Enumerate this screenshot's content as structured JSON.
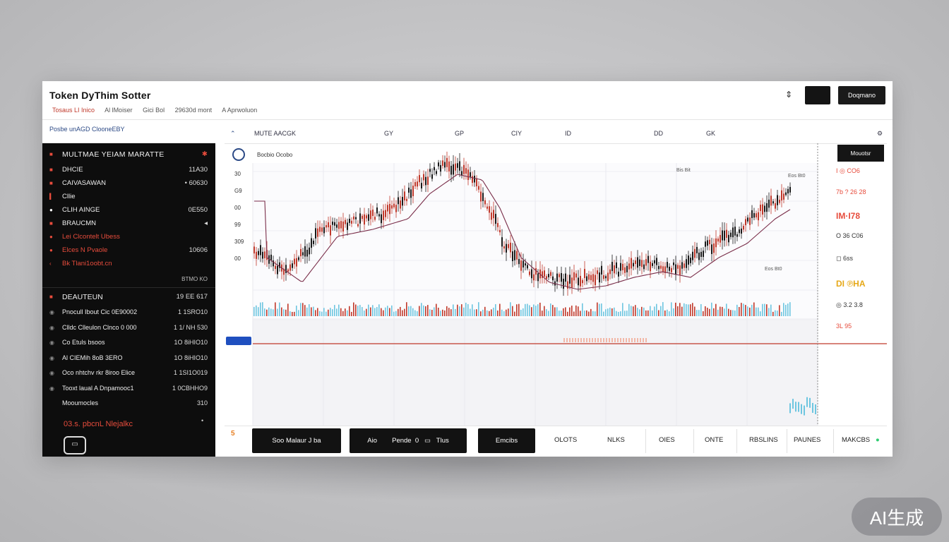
{
  "header": {
    "title": "Token DyThim Sotter",
    "meta": [
      "Tosaus LI Inico",
      "Al lMoiser",
      "Gici Bol",
      "29630d mont",
      "A Aprwoluon"
    ],
    "icon": "sort-icon",
    "button": "Doqmano"
  },
  "sidebar": {
    "top_link": "Posbe unAGD ClooneEBY",
    "section1_title": "MULTMAE YEIAM MARATTE",
    "items1": [
      {
        "label": "DHCIE",
        "value": "11A30",
        "icon": "square-icon",
        "color": "#e74c3c"
      },
      {
        "label": "CAIVASAWAN",
        "value": "• 60630",
        "icon": "square-icon",
        "color": "#e74c3c"
      },
      {
        "label": "Cllie",
        "value": "",
        "icon": "bar-icon",
        "color": "#e74c3c"
      },
      {
        "label": "CLIH AINGE",
        "value": "0E550",
        "icon": "dot-icon",
        "color": "#ffffff"
      },
      {
        "label": "BRAUCMN",
        "value": "◂",
        "icon": "square-icon",
        "color": "#e74c3c"
      },
      {
        "label": "Lei Clcontelt Ubess",
        "value": "",
        "icon": "dot-icon",
        "color": "#e74c3c"
      },
      {
        "label": "Elces N Pvaole",
        "value": "10606",
        "icon": "dot-icon",
        "color": "#e74c3c"
      },
      {
        "label": "Bk Tlani1oobt.cn",
        "value": "",
        "icon": "chevron-left-icon",
        "color": "#e74c3c"
      }
    ],
    "section1_footer": "BTMO    KO",
    "section2_title": "DEAUTEUN",
    "section2_value": "19 EE 617",
    "items2": [
      {
        "label": "Pnocull Ibout Cic 0E90002",
        "value": "1 1SRO10"
      },
      {
        "label": "Clldc Clleulon Clnco 0 000",
        "value": "1 1/ NH 530"
      },
      {
        "label": "Co Etuls bsoos",
        "value": "1O 8iHIO10"
      },
      {
        "label": "Al CIEMih 8oB 3ERO",
        "value": "1O 8iHIO10"
      },
      {
        "label": "Oco nhtchv rkr 8iroo Elice",
        "value": "1 1SI1O019"
      },
      {
        "label": "Tooxt laual A Dnpamooc1",
        "value": "1 0CBHHO9"
      },
      {
        "label": "Mooumocles",
        "value": "310"
      }
    ],
    "footer_text": "03.s. pbcnL Nlejalkc",
    "footer_dot": "•"
  },
  "chart_toolbar": {
    "items": [
      "MUTE AACGK",
      "GY",
      "GP",
      "CIY",
      "ID",
      "DD",
      "GK"
    ],
    "right_icon": "settings-icon"
  },
  "chart_legend": "Bocbio Ocobo",
  "chart_annotations": [
    "Bis Bit",
    "Eos Bt0",
    "Eos Bt0"
  ],
  "right_panel": {
    "button": "Mouotsr",
    "rows": [
      {
        "label": "I ◎ CO6",
        "color": "#e74c3c"
      },
      {
        "label": "7b ? 26 28",
        "color": "#e74c3c"
      },
      {
        "label": "IM·I78",
        "color": "#e74c3c"
      },
      {
        "label": "O 36 C06",
        "color": "#333333"
      },
      {
        "label": "◻ 6ss",
        "color": "#333333"
      },
      {
        "label": "DI ℗HA",
        "color": "#e6a817"
      },
      {
        "label": "◎ 3.2 3.8",
        "color": "#333333"
      },
      {
        "label": "3L 95",
        "color": "#e74c3c"
      }
    ]
  },
  "bottom_bar": {
    "buttons": [
      "Soo Malaur J ba",
      "Aio        Pende  0   ▭   Tlus",
      "Emcibs"
    ],
    "tabs": [
      "OLOTS",
      "NLKS",
      "OIES",
      "ONTE",
      "RBSLINS",
      "PAUNES",
      "MAKCBS"
    ]
  },
  "chart_data": {
    "type": "candlestick",
    "y_ticks": [
      "30",
      "G9",
      "00",
      "99",
      "309",
      "00"
    ],
    "panes": [
      "price",
      "volume",
      "indicator"
    ],
    "colors": {
      "up": "#1a1a1a",
      "down": "#c0392b",
      "ma": "#7a2e4a",
      "volume_a": "#6ec6e0",
      "volume_b": "#c0392b"
    }
  },
  "watermark": "AI生成"
}
